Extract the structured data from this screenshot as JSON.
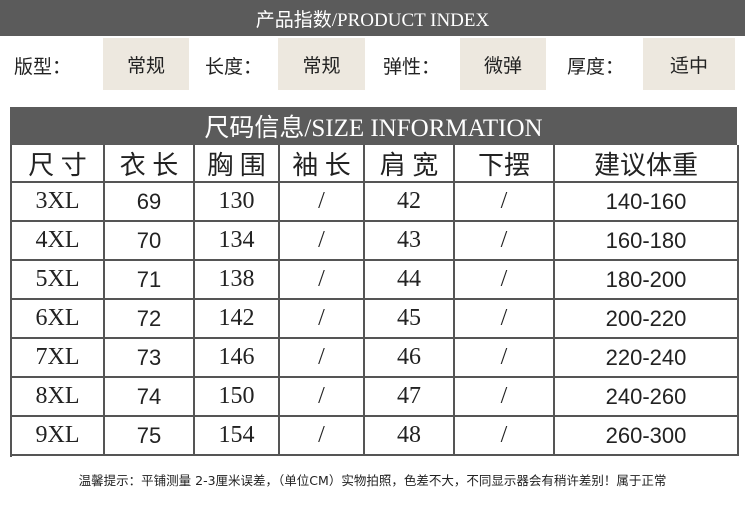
{
  "header": {
    "title": "产品指数/PRODUCT INDEX"
  },
  "attributes": [
    {
      "label": "版型：",
      "value": "常规"
    },
    {
      "label": "长度：",
      "value": "常规"
    },
    {
      "label": "弹性：",
      "value": "微弹"
    },
    {
      "label": "厚度：",
      "value": "适中"
    }
  ],
  "table": {
    "title": "尺码信息/SIZE INFORMATION",
    "columns": [
      "尺 寸",
      "衣 长",
      "胸 围",
      "袖 长",
      "肩 宽",
      "下摆",
      "建议体重"
    ],
    "rows": [
      [
        "3XL",
        "69",
        "130",
        "/",
        "42",
        "/",
        "140-160"
      ],
      [
        "4XL",
        "70",
        "134",
        "/",
        "43",
        "/",
        "160-180"
      ],
      [
        "5XL",
        "71",
        "138",
        "/",
        "44",
        "/",
        "180-200"
      ],
      [
        "6XL",
        "72",
        "142",
        "/",
        "45",
        "/",
        "200-220"
      ],
      [
        "7XL",
        "73",
        "146",
        "/",
        "46",
        "/",
        "220-240"
      ],
      [
        "8XL",
        "74",
        "150",
        "/",
        "47",
        "/",
        "240-260"
      ],
      [
        "9XL",
        "75",
        "154",
        "/",
        "48",
        "/",
        "260-300"
      ]
    ]
  },
  "footer": {
    "note": "温馨提示：平铺测量 2-3厘米误差，（单位CM）实物拍照，色差不大，不同显示器会有稍许差别！属于正常"
  }
}
